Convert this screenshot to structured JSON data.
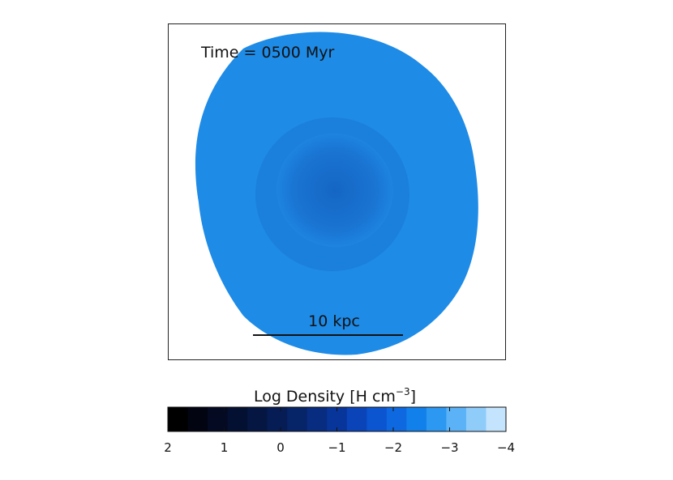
{
  "panel": {
    "time_label": "Time = 0500 Myr",
    "scale_label": "10 kpc"
  },
  "colorbar": {
    "title_prefix": "Log Density [H cm",
    "title_exponent": "−3",
    "title_suffix": "]",
    "lim": [
      2,
      -4
    ],
    "ticks": [
      2,
      1,
      0,
      {
        "value": -1,
        "label": "−1"
      },
      {
        "value": -2,
        "label": "−2"
      },
      {
        "value": -3,
        "label": "−3"
      },
      {
        "value": -4,
        "label": "−4"
      }
    ],
    "colors": [
      "#000000",
      "#020412",
      "#030a22",
      "#041032",
      "#051642",
      "#061c55",
      "#062468",
      "#072c80",
      "#08359a",
      "#0a44b8",
      "#0c55d0",
      "#0e68e0",
      "#1280ea",
      "#2c98f2",
      "#5cb2f6",
      "#90ccfa",
      "#c4e4fd"
    ]
  }
}
